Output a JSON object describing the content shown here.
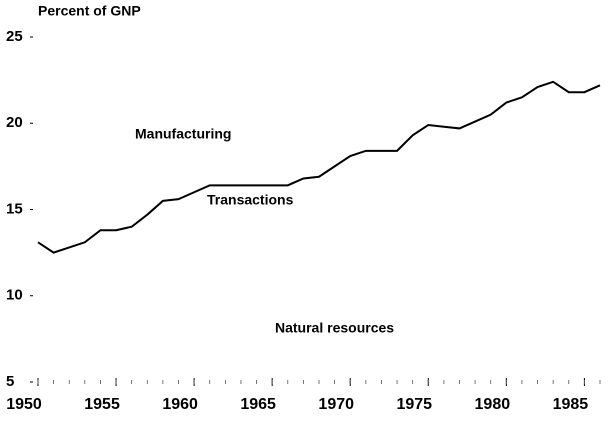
{
  "chart_data": {
    "type": "line",
    "title": "Percent of GNP",
    "annotations": [
      "Manufacturing",
      "Transactions",
      "Natural resources"
    ],
    "x": [
      1950,
      1951,
      1952,
      1953,
      1954,
      1955,
      1956,
      1957,
      1958,
      1959,
      1960,
      1961,
      1962,
      1963,
      1964,
      1965,
      1966,
      1967,
      1968,
      1969,
      1970,
      1971,
      1972,
      1973,
      1974,
      1975,
      1976,
      1977,
      1978,
      1979,
      1980,
      1981,
      1982,
      1983,
      1984,
      1985,
      1986
    ],
    "series": [
      {
        "name": "Transactions",
        "color": "#000000",
        "values": [
          13.1,
          12.5,
          12.8,
          13.1,
          13.8,
          13.8,
          14.0,
          14.7,
          15.5,
          15.6,
          16.0,
          16.4,
          16.4,
          16.4,
          16.4,
          16.4,
          16.4,
          16.8,
          16.9,
          17.5,
          18.1,
          18.4,
          18.4,
          18.4,
          19.3,
          19.9,
          19.8,
          19.7,
          20.1,
          20.5,
          21.2,
          21.5,
          22.1,
          22.4,
          21.8,
          21.8,
          22.2
        ]
      }
    ],
    "xlim": [
      1950,
      1986
    ],
    "xticks": [
      1950,
      1955,
      1960,
      1965,
      1970,
      1975,
      1980,
      1985
    ],
    "ylim": [
      5,
      25
    ],
    "yticks": [
      5,
      10,
      15,
      20,
      25
    ],
    "grid": false
  }
}
